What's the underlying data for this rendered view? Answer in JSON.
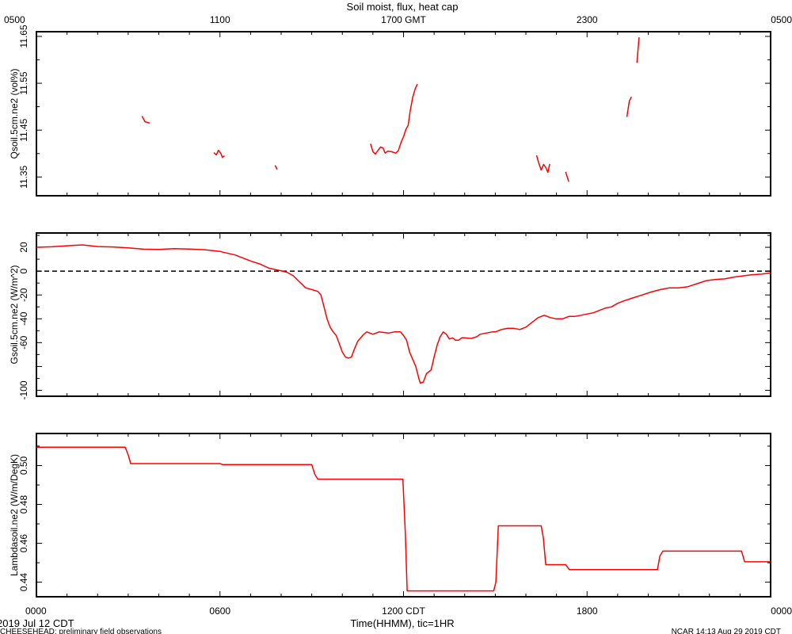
{
  "title": "Soil moist, flux, heat cap",
  "bottom_time_labels": [
    "0000",
    "0600",
    "1200 CDT",
    "1800",
    "0000"
  ],
  "top_time_labels": [
    "0500",
    "1100",
    "1700 GMT",
    "2300",
    "0500"
  ],
  "xlabel": "Time(HHMM), tic=1HR",
  "date_label": "2019 Jul 12 CDT",
  "footer_left": "CHEESEHEAD: preliminary field observations",
  "footer_right": "NCAR 14:13 Aug 29 2019 CDT",
  "colors": {
    "series": "#ff0000",
    "axis": "#000000",
    "zero_line": "#000000"
  },
  "chart_data": [
    {
      "type": "line",
      "ylabel": "Qsoil.5cm.ne2 (vol%)",
      "xlim": [
        0,
        24
      ],
      "ylim": [
        11.31,
        11.66
      ],
      "yticks": [
        11.35,
        11.45,
        11.55,
        11.65
      ],
      "ytick_labels": [
        "11.35",
        "11.45",
        "11.55",
        "11.65"
      ],
      "segments": [
        [
          [
            3.45,
            11.48
          ],
          [
            3.55,
            11.468
          ],
          [
            3.7,
            11.465
          ]
        ],
        [
          [
            5.8,
            11.402
          ],
          [
            5.88,
            11.397
          ],
          [
            5.95,
            11.407
          ],
          [
            6.03,
            11.4
          ],
          [
            6.08,
            11.392
          ],
          [
            6.15,
            11.395
          ]
        ],
        [
          [
            7.8,
            11.375
          ],
          [
            7.87,
            11.366
          ]
        ],
        [
          [
            10.92,
            11.421
          ],
          [
            11.0,
            11.404
          ],
          [
            11.08,
            11.399
          ],
          [
            11.18,
            11.408
          ],
          [
            11.25,
            11.414
          ],
          [
            11.33,
            11.412
          ],
          [
            11.4,
            11.401
          ],
          [
            11.48,
            11.405
          ],
          [
            11.6,
            11.404
          ],
          [
            11.75,
            11.401
          ],
          [
            11.83,
            11.406
          ],
          [
            11.92,
            11.424
          ],
          [
            12.0,
            11.436
          ],
          [
            12.08,
            11.452
          ],
          [
            12.15,
            11.46
          ],
          [
            12.22,
            11.492
          ],
          [
            12.3,
            11.52
          ],
          [
            12.38,
            11.538
          ],
          [
            12.45,
            11.548
          ]
        ],
        [
          [
            16.35,
            11.396
          ],
          [
            16.42,
            11.38
          ],
          [
            16.5,
            11.365
          ],
          [
            16.58,
            11.377
          ],
          [
            16.65,
            11.37
          ],
          [
            16.72,
            11.36
          ],
          [
            16.78,
            11.378
          ]
        ],
        [
          [
            17.3,
            11.361
          ],
          [
            17.4,
            11.34
          ]
        ],
        [
          [
            19.3,
            11.478
          ],
          [
            19.38,
            11.512
          ],
          [
            19.45,
            11.521
          ]
        ],
        [
          [
            19.63,
            11.594
          ],
          [
            19.7,
            11.648
          ]
        ]
      ]
    },
    {
      "type": "line",
      "ylabel": "Gsoil.5cm.ne2 (W/m^2)",
      "xlim": [
        0,
        24
      ],
      "ylim": [
        -105,
        32
      ],
      "yticks": [
        -100,
        -80,
        -60,
        -40,
        -20,
        0,
        20
      ],
      "ytick_labels": [
        "-100",
        "",
        "-60",
        "-40",
        "-20",
        "0",
        "20"
      ],
      "reference_line": 0,
      "series": [
        {
          "values": [
            [
              0.0,
              20
            ],
            [
              0.5,
              20.4
            ],
            [
              1.0,
              21.3
            ],
            [
              1.5,
              22
            ],
            [
              2.0,
              20.6
            ],
            [
              2.5,
              20.3
            ],
            [
              3.0,
              19.5
            ],
            [
              3.5,
              18.4
            ],
            [
              4.0,
              18.2
            ],
            [
              4.5,
              18.8
            ],
            [
              5.0,
              18.5
            ],
            [
              5.5,
              18
            ],
            [
              6.0,
              16.5
            ],
            [
              6.5,
              13.5
            ],
            [
              7.0,
              8.5
            ],
            [
              7.3,
              6
            ],
            [
              7.6,
              2.5
            ],
            [
              7.9,
              0.8
            ],
            [
              8.2,
              -1
            ],
            [
              8.4,
              -4
            ],
            [
              8.6,
              -9
            ],
            [
              8.8,
              -14
            ],
            [
              9.0,
              -15.5
            ],
            [
              9.2,
              -17
            ],
            [
              9.3,
              -20
            ],
            [
              9.4,
              -30
            ],
            [
              9.5,
              -40
            ],
            [
              9.6,
              -47
            ],
            [
              9.7,
              -51
            ],
            [
              9.8,
              -54
            ],
            [
              9.9,
              -61
            ],
            [
              10.0,
              -68
            ],
            [
              10.1,
              -72
            ],
            [
              10.2,
              -73
            ],
            [
              10.3,
              -72
            ],
            [
              10.4,
              -65
            ],
            [
              10.5,
              -59
            ],
            [
              10.7,
              -53
            ],
            [
              10.8,
              -51
            ],
            [
              11.0,
              -53
            ],
            [
              11.2,
              -51
            ],
            [
              11.5,
              -52
            ],
            [
              11.7,
              -51
            ],
            [
              11.9,
              -51
            ],
            [
              12.0,
              -54
            ],
            [
              12.1,
              -58
            ],
            [
              12.2,
              -68
            ],
            [
              12.3,
              -74
            ],
            [
              12.4,
              -80
            ],
            [
              12.5,
              -90
            ],
            [
              12.55,
              -94
            ],
            [
              12.65,
              -93
            ],
            [
              12.75,
              -86
            ],
            [
              12.9,
              -83
            ],
            [
              13.0,
              -72
            ],
            [
              13.1,
              -62
            ],
            [
              13.2,
              -55
            ],
            [
              13.3,
              -51
            ],
            [
              13.4,
              -53
            ],
            [
              13.5,
              -57
            ],
            [
              13.6,
              -56
            ],
            [
              13.7,
              -58
            ],
            [
              13.8,
              -58
            ],
            [
              13.9,
              -56
            ],
            [
              14.0,
              -56
            ],
            [
              14.2,
              -56.5
            ],
            [
              14.4,
              -55
            ],
            [
              14.5,
              -53
            ],
            [
              14.7,
              -52
            ],
            [
              14.9,
              -51
            ],
            [
              15.0,
              -51
            ],
            [
              15.2,
              -49
            ],
            [
              15.4,
              -48
            ],
            [
              15.6,
              -48
            ],
            [
              15.8,
              -49
            ],
            [
              16.0,
              -47
            ],
            [
              16.2,
              -43
            ],
            [
              16.4,
              -39
            ],
            [
              16.6,
              -37
            ],
            [
              16.8,
              -39
            ],
            [
              17.0,
              -40
            ],
            [
              17.2,
              -40
            ],
            [
              17.4,
              -38
            ],
            [
              17.6,
              -38
            ],
            [
              17.8,
              -37
            ],
            [
              18.0,
              -36
            ],
            [
              18.2,
              -35
            ],
            [
              18.4,
              -33
            ],
            [
              18.6,
              -31
            ],
            [
              18.8,
              -30
            ],
            [
              19.0,
              -27
            ],
            [
              19.2,
              -25
            ],
            [
              19.5,
              -22.5
            ],
            [
              19.8,
              -20
            ],
            [
              20.1,
              -17.5
            ],
            [
              20.4,
              -15.5
            ],
            [
              20.7,
              -14
            ],
            [
              21.0,
              -14
            ],
            [
              21.3,
              -13
            ],
            [
              21.6,
              -10.5
            ],
            [
              21.9,
              -8
            ],
            [
              22.2,
              -7
            ],
            [
              22.5,
              -6.5
            ],
            [
              22.8,
              -5
            ],
            [
              23.1,
              -4
            ],
            [
              23.4,
              -3
            ],
            [
              23.7,
              -2.5
            ],
            [
              24.0,
              -1.5
            ]
          ]
        }
      ]
    },
    {
      "type": "line",
      "ylabel": "Lambdasoil.ne2 (W/m/DegK)",
      "xlim": [
        0,
        24
      ],
      "ylim": [
        0.4325,
        0.5165
      ],
      "yticks": [
        0.44,
        0.46,
        0.48,
        0.5
      ],
      "ytick_labels": [
        "0.44",
        "0.46",
        "0.48",
        "0.50"
      ],
      "series": [
        {
          "values": [
            [
              0.0,
              0.5095
            ],
            [
              2.9,
              0.5095
            ],
            [
              3.0,
              0.5055
            ],
            [
              3.08,
              0.501
            ],
            [
              6.0,
              0.501
            ],
            [
              6.08,
              0.5005
            ],
            [
              9.0,
              0.5005
            ],
            [
              9.1,
              0.4955
            ],
            [
              9.2,
              0.493
            ],
            [
              11.98,
              0.493
            ],
            [
              12.06,
              0.465
            ],
            [
              12.12,
              0.4355
            ],
            [
              14.95,
              0.4355
            ],
            [
              15.02,
              0.44
            ],
            [
              15.1,
              0.469
            ],
            [
              16.5,
              0.469
            ],
            [
              16.57,
              0.463
            ],
            [
              16.65,
              0.449
            ],
            [
              17.3,
              0.449
            ],
            [
              17.42,
              0.4465
            ],
            [
              20.3,
              0.4465
            ],
            [
              20.38,
              0.4535
            ],
            [
              20.48,
              0.456
            ],
            [
              23.05,
              0.456
            ],
            [
              23.15,
              0.4505
            ],
            [
              24.0,
              0.4505
            ]
          ]
        }
      ]
    }
  ]
}
